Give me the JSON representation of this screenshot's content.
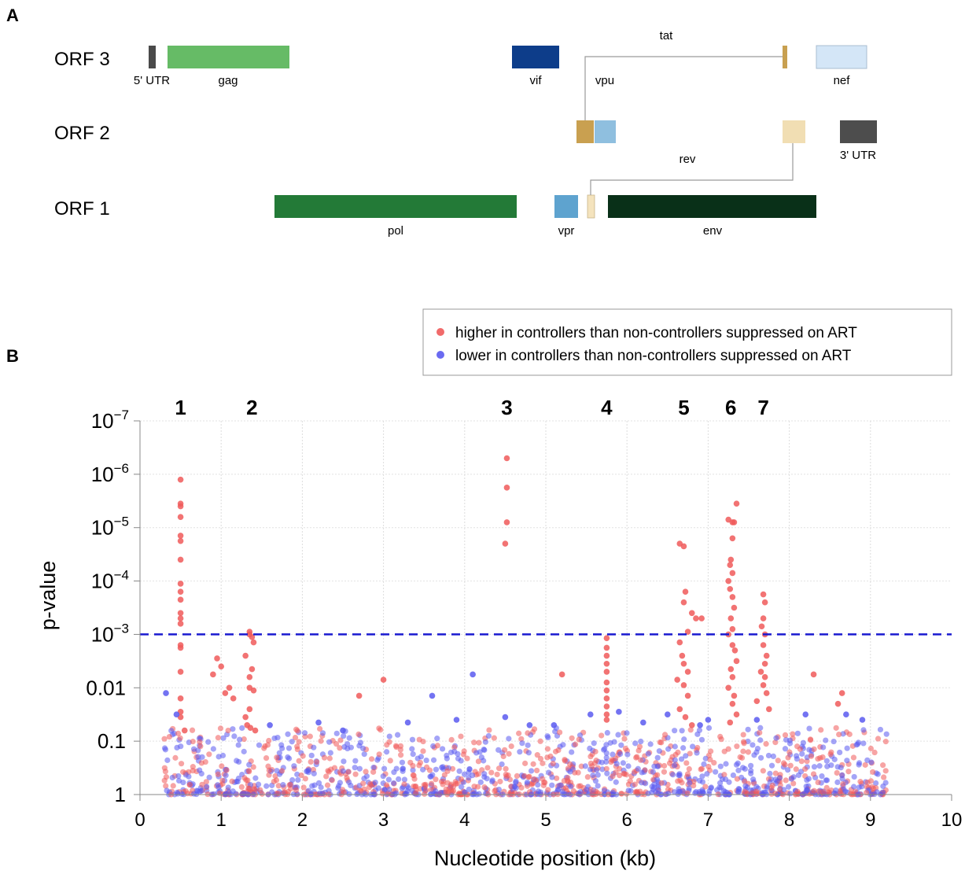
{
  "panel_a": {
    "label": "A",
    "rows": [
      {
        "key": "orf3",
        "label": "ORF 3"
      },
      {
        "key": "orf2",
        "label": "ORF 2"
      },
      {
        "key": "orf1",
        "label": "ORF 1"
      }
    ],
    "genes": [
      {
        "name": "5' UTR",
        "orf": "orf3",
        "color": "#4a4a4a"
      },
      {
        "name": "gag",
        "orf": "orf3",
        "color": "#66bb66"
      },
      {
        "name": "vif",
        "orf": "orf3",
        "color": "#0d3d8a"
      },
      {
        "name": "tat exon 2",
        "orf": "orf3",
        "color": "#c8a050"
      },
      {
        "name": "nef",
        "orf": "orf3",
        "color": "#d4e6f7"
      },
      {
        "name": "tat exon 1",
        "orf": "orf2",
        "color": "#c9a050"
      },
      {
        "name": "vpu",
        "orf": "orf2",
        "color": "#8fbfdf"
      },
      {
        "name": "rev exon 2",
        "orf": "orf2",
        "color": "#f1deb3"
      },
      {
        "name": "3' UTR",
        "orf": "orf2",
        "color": "#4d4d4d"
      },
      {
        "name": "pol",
        "orf": "orf1",
        "color": "#237a37"
      },
      {
        "name": "vpr",
        "orf": "orf1",
        "color": "#5ea3cf"
      },
      {
        "name": "rev exon 1",
        "orf": "orf1",
        "color": "#f4e3bd"
      },
      {
        "name": "env",
        "orf": "orf1",
        "color": "#093018"
      }
    ],
    "gene_labels": {
      "utr5": "5' UTR",
      "gag": "gag",
      "vif": "vif",
      "vpu": "vpu",
      "tat": "tat",
      "nef": "nef",
      "utr3": "3' UTR",
      "rev": "rev",
      "pol": "pol",
      "vpr": "vpr",
      "env": "env"
    }
  },
  "panel_b": {
    "label": "B",
    "legend": {
      "higher": {
        "label": "higher in controllers than non-controllers suppressed on ART",
        "color": "#f05a5a"
      },
      "lower": {
        "label": "lower in controllers than non-controllers suppressed on ART",
        "color": "#5a5af0"
      }
    },
    "peak_labels": [
      {
        "label": "1",
        "x": 0.5
      },
      {
        "label": "2",
        "x": 1.38
      },
      {
        "label": "3",
        "x": 4.52
      },
      {
        "label": "4",
        "x": 5.75
      },
      {
        "label": "5",
        "x": 6.7
      },
      {
        "label": "6",
        "x": 7.28
      },
      {
        "label": "7",
        "x": 7.68
      }
    ]
  },
  "chart_data": {
    "type": "scatter",
    "title": "",
    "xlabel": "Nucleotide position (kb)",
    "ylabel": "p-value",
    "xlim": [
      0,
      10
    ],
    "ylim_neglog10": [
      0,
      7
    ],
    "x_ticks": [
      "0",
      "1",
      "2",
      "3",
      "4",
      "5",
      "6",
      "7",
      "8",
      "9",
      "10"
    ],
    "y_ticks": [
      {
        "value": 1,
        "label": "1",
        "exp": ""
      },
      {
        "value": 0.1,
        "label": "0.1",
        "exp": ""
      },
      {
        "value": 0.01,
        "label": "0.01",
        "exp": ""
      },
      {
        "value": 0.001,
        "label": "10",
        "exp": "−3"
      },
      {
        "value": 0.0001,
        "label": "10",
        "exp": "−4"
      },
      {
        "value": 1e-05,
        "label": "10",
        "exp": "−5"
      },
      {
        "value": 1e-06,
        "label": "10",
        "exp": "−6"
      },
      {
        "value": 1e-07,
        "label": "10",
        "exp": "−7"
      }
    ],
    "threshold": {
      "p": 0.001,
      "color": "#1a1ad0",
      "style": "dashed"
    },
    "grid": true,
    "legend_position": "top-right",
    "series": [
      {
        "name": "higher in controllers than non-controllers suppressed on ART",
        "color": "#f05a5a",
        "points": [
          [
            0.5,
            5.9
          ],
          [
            0.5,
            5.45
          ],
          [
            0.5,
            5.4
          ],
          [
            0.5,
            5.2
          ],
          [
            0.5,
            4.85
          ],
          [
            0.5,
            4.75
          ],
          [
            0.5,
            4.4
          ],
          [
            0.5,
            3.95
          ],
          [
            0.5,
            3.8
          ],
          [
            0.5,
            3.65
          ],
          [
            0.5,
            3.4
          ],
          [
            0.5,
            3.3
          ],
          [
            0.5,
            3.2
          ],
          [
            0.5,
            2.8
          ],
          [
            0.5,
            2.75
          ],
          [
            0.5,
            2.3
          ],
          [
            0.5,
            1.8
          ],
          [
            0.5,
            1.55
          ],
          [
            0.5,
            1.45
          ],
          [
            0.55,
            1.2
          ],
          [
            1.35,
            3.05
          ],
          [
            1.35,
            3.0
          ],
          [
            1.4,
            2.85
          ],
          [
            1.3,
            2.6
          ],
          [
            1.38,
            2.95
          ],
          [
            1.38,
            2.35
          ],
          [
            1.35,
            2.2
          ],
          [
            1.35,
            2.0
          ],
          [
            1.4,
            1.95
          ],
          [
            1.35,
            1.6
          ],
          [
            1.3,
            1.45
          ],
          [
            1.32,
            1.3
          ],
          [
            1.36,
            1.25
          ],
          [
            1.42,
            1.2
          ],
          [
            1.0,
            2.4
          ],
          [
            0.9,
            2.25
          ],
          [
            1.1,
            2.0
          ],
          [
            1.05,
            1.9
          ],
          [
            1.15,
            1.8
          ],
          [
            4.52,
            6.3
          ],
          [
            4.52,
            5.75
          ],
          [
            4.52,
            5.1
          ],
          [
            4.5,
            4.7
          ],
          [
            5.75,
            2.93
          ],
          [
            5.75,
            2.75
          ],
          [
            5.75,
            2.6
          ],
          [
            5.75,
            2.45
          ],
          [
            5.75,
            2.3
          ],
          [
            5.75,
            2.1
          ],
          [
            5.75,
            1.95
          ],
          [
            5.75,
            1.8
          ],
          [
            5.75,
            1.65
          ],
          [
            5.75,
            1.5
          ],
          [
            5.75,
            1.4
          ],
          [
            6.65,
            4.7
          ],
          [
            6.7,
            4.65
          ],
          [
            6.72,
            3.8
          ],
          [
            6.7,
            3.6
          ],
          [
            6.8,
            3.4
          ],
          [
            6.85,
            3.3
          ],
          [
            6.75,
            3.05
          ],
          [
            6.65,
            2.85
          ],
          [
            6.68,
            2.6
          ],
          [
            6.7,
            2.45
          ],
          [
            6.75,
            2.3
          ],
          [
            6.62,
            2.15
          ],
          [
            6.7,
            2.05
          ],
          [
            6.75,
            1.85
          ],
          [
            6.65,
            1.6
          ],
          [
            6.72,
            1.45
          ],
          [
            6.8,
            1.3
          ],
          [
            6.92,
            3.3
          ],
          [
            7.35,
            5.45
          ],
          [
            7.32,
            5.1
          ],
          [
            7.25,
            5.15
          ],
          [
            7.3,
            5.1
          ],
          [
            7.3,
            4.8
          ],
          [
            7.28,
            4.4
          ],
          [
            7.27,
            4.3
          ],
          [
            7.3,
            4.15
          ],
          [
            7.25,
            4.0
          ],
          [
            7.27,
            3.85
          ],
          [
            7.3,
            3.7
          ],
          [
            7.32,
            3.5
          ],
          [
            7.28,
            3.3
          ],
          [
            7.3,
            3.1
          ],
          [
            7.25,
            3.0
          ],
          [
            7.3,
            2.8
          ],
          [
            7.33,
            2.7
          ],
          [
            7.35,
            2.5
          ],
          [
            7.28,
            2.35
          ],
          [
            7.3,
            2.2
          ],
          [
            7.25,
            2.0
          ],
          [
            7.32,
            1.85
          ],
          [
            7.3,
            1.7
          ],
          [
            7.35,
            1.5
          ],
          [
            7.27,
            1.35
          ],
          [
            7.68,
            3.75
          ],
          [
            7.7,
            3.6
          ],
          [
            7.68,
            3.3
          ],
          [
            7.66,
            3.15
          ],
          [
            7.7,
            3.0
          ],
          [
            7.68,
            2.8
          ],
          [
            7.72,
            2.6
          ],
          [
            7.7,
            2.45
          ],
          [
            7.65,
            2.3
          ],
          [
            7.7,
            2.2
          ],
          [
            7.68,
            2.05
          ],
          [
            7.72,
            1.9
          ],
          [
            7.6,
            1.75
          ],
          [
            7.75,
            1.6
          ],
          [
            8.3,
            2.25
          ],
          [
            8.65,
            1.9
          ],
          [
            8.6,
            1.7
          ],
          [
            3.0,
            2.15
          ],
          [
            2.7,
            1.85
          ],
          [
            5.2,
            2.25
          ],
          [
            0.95,
            2.55
          ]
        ]
      },
      {
        "name": "lower in controllers than non-controllers suppressed on ART",
        "color": "#5a5af0",
        "points": [
          [
            0.32,
            1.9
          ],
          [
            4.1,
            2.25
          ],
          [
            3.6,
            1.85
          ],
          [
            5.55,
            1.5
          ],
          [
            6.9,
            1.3
          ],
          [
            8.9,
            1.4
          ],
          [
            1.6,
            1.3
          ],
          [
            2.2,
            1.35
          ],
          [
            2.5,
            1.2
          ],
          [
            3.3,
            1.35
          ],
          [
            3.9,
            1.4
          ],
          [
            4.5,
            1.45
          ],
          [
            4.8,
            1.3
          ],
          [
            5.1,
            1.3
          ],
          [
            5.9,
            1.55
          ],
          [
            6.2,
            1.35
          ],
          [
            6.5,
            1.5
          ],
          [
            7.0,
            1.4
          ],
          [
            7.6,
            1.4
          ],
          [
            8.2,
            1.5
          ],
          [
            8.7,
            1.5
          ],
          [
            0.45,
            1.5
          ]
        ]
      }
    ],
    "background_cloud": {
      "x_range_kb": [
        0.3,
        9.2
      ],
      "p_range": [
        0.05,
        1
      ],
      "note": "dense overlapping points from both series near p = 1"
    }
  }
}
